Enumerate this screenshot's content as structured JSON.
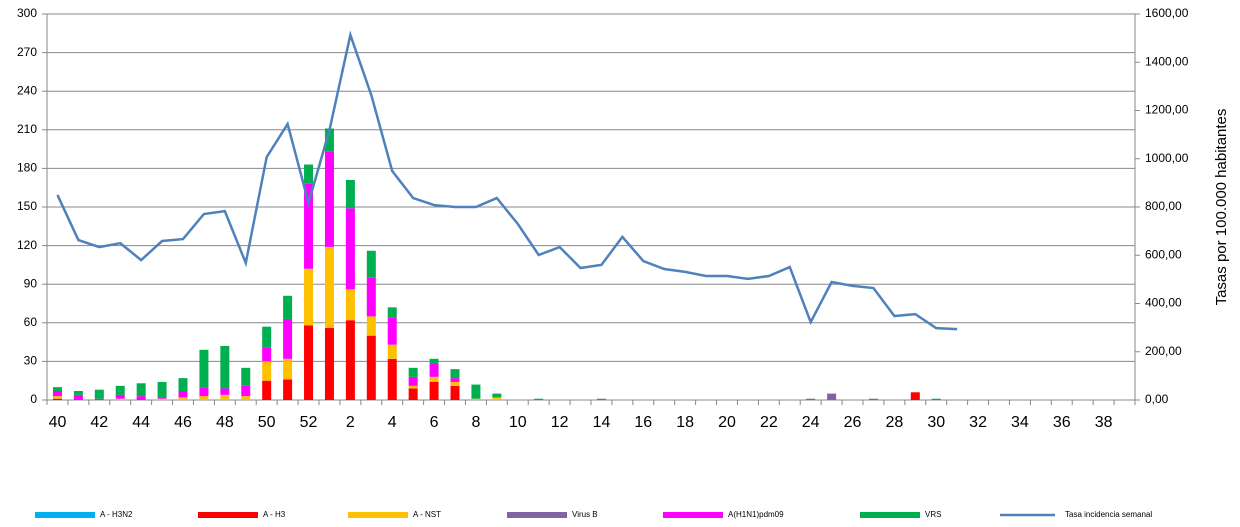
{
  "chart_data": {
    "type": "bar",
    "y2_label": "Tasas  por 100.000 habitantes",
    "categories": [
      "40",
      null,
      "42",
      null,
      "44",
      null,
      "46",
      null,
      "48",
      null,
      "50",
      null,
      "52",
      null,
      "2",
      null,
      "4",
      null,
      "6",
      null,
      "8",
      null,
      "10",
      null,
      "12",
      null,
      "14",
      null,
      "16",
      null,
      "18",
      null,
      "20",
      null,
      "22",
      null,
      "24",
      null,
      "26",
      null,
      "28",
      null,
      "30",
      null,
      "32",
      null,
      "34",
      null,
      "36",
      null,
      "38",
      null
    ],
    "ylim": [
      0,
      300
    ],
    "yticks": [
      0,
      30,
      60,
      90,
      120,
      150,
      180,
      210,
      240,
      270,
      300
    ],
    "y2lim": [
      0,
      1600
    ],
    "y2ticks": [
      {
        "value": 0,
        "label": "0,00"
      },
      {
        "value": 200,
        "label": "200,00"
      },
      {
        "value": 400,
        "label": "400,00"
      },
      {
        "value": 600,
        "label": "600,00"
      },
      {
        "value": 800,
        "label": "800,00"
      },
      {
        "value": 1000,
        "label": "1000,00"
      },
      {
        "value": 1200,
        "label": "1200,00"
      },
      {
        "value": 1400,
        "label": "1400,00"
      },
      {
        "value": 1600,
        "label": "1600,00"
      }
    ],
    "grid": true,
    "stacked": true,
    "legend": "bottom",
    "series": [
      {
        "name": "A - H3N2",
        "color": "#00b0f0",
        "values": [
          0,
          0,
          0,
          0,
          0,
          0,
          0,
          0,
          0,
          0,
          0,
          0,
          0,
          0,
          0,
          0,
          0,
          0,
          0,
          0,
          0,
          0,
          0,
          0,
          0,
          0,
          0,
          0,
          0,
          0,
          0,
          0,
          0,
          0,
          0,
          0,
          0,
          0,
          0,
          0,
          0,
          0,
          0,
          0,
          0,
          0,
          0,
          0,
          0,
          0,
          0,
          0
        ]
      },
      {
        "name": "A - H3",
        "color": "#ff0000",
        "values": [
          1,
          0,
          0,
          0,
          0,
          0,
          0,
          0,
          0,
          0,
          15,
          16,
          58,
          56,
          62,
          50,
          32,
          9,
          14,
          11,
          0,
          0,
          0,
          0,
          0,
          0,
          0,
          0,
          0,
          0,
          0,
          0,
          0,
          0,
          0,
          0,
          0,
          0,
          0,
          0,
          0,
          6,
          0,
          0,
          0,
          0,
          0,
          0,
          0,
          0,
          0,
          0
        ]
      },
      {
        "name": "A - NST",
        "color": "#ffc000",
        "values": [
          2,
          0,
          0,
          1,
          0,
          1,
          2,
          3,
          4,
          3,
          15,
          16,
          44,
          63,
          24,
          15,
          11,
          2,
          4,
          3,
          1,
          2,
          0,
          0,
          0,
          0,
          0,
          0,
          0,
          0,
          0,
          0,
          0,
          0,
          0,
          0,
          0,
          0,
          0,
          0,
          0,
          0,
          0,
          0,
          0,
          0,
          0,
          0,
          0,
          0,
          0,
          0
        ]
      },
      {
        "name": "Virus B",
        "color": "#8064a2",
        "values": [
          0,
          0,
          0,
          0,
          0,
          0,
          0,
          0,
          0,
          0,
          0,
          0,
          0,
          0,
          0,
          0,
          0,
          0,
          0,
          0,
          0,
          0,
          0,
          0,
          0,
          0,
          1,
          0,
          0,
          0,
          0,
          0,
          0,
          0,
          0,
          0,
          1,
          5,
          0,
          1,
          0,
          0,
          0,
          0,
          0,
          0,
          0,
          0,
          0,
          0,
          0,
          0
        ]
      },
      {
        "name": "A(H1N1)pdm09",
        "color": "#ff00ff",
        "values": [
          4,
          4,
          1,
          3,
          3,
          1,
          5,
          7,
          5,
          8,
          11,
          31,
          66,
          74,
          63,
          30,
          21,
          7,
          10,
          3,
          0,
          0,
          0,
          0,
          0,
          0,
          0,
          0,
          0,
          0,
          0,
          0,
          0,
          0,
          0,
          0,
          0,
          0,
          0,
          0,
          0,
          0,
          0,
          0,
          0,
          0,
          0,
          0,
          0,
          0,
          0,
          0
        ]
      },
      {
        "name": "VRS",
        "color": "#00b050",
        "values": [
          3,
          3,
          7,
          7,
          10,
          12,
          10,
          29,
          33,
          14,
          16,
          18,
          15,
          18,
          22,
          21,
          8,
          7,
          4,
          7,
          11,
          3,
          0,
          1,
          0,
          0,
          0,
          0,
          0,
          0,
          0,
          0,
          0,
          0,
          0,
          0,
          0,
          0,
          0,
          0,
          0,
          0,
          1,
          0,
          0,
          0,
          0,
          0,
          0,
          0,
          0,
          0
        ]
      },
      {
        "name": "Tasa incidencia semanal",
        "color": "#4f81bd",
        "axis": "y2",
        "type": "line",
        "values": [
          850,
          663,
          634,
          650,
          580,
          659,
          667,
          771,
          783,
          568,
          1007,
          1144,
          817,
          1119,
          1513,
          1264,
          949,
          837,
          808,
          800,
          800,
          837,
          730,
          601,
          634,
          547,
          560,
          676,
          576,
          543,
          531,
          514,
          514,
          502,
          514,
          551,
          323,
          489,
          473,
          464,
          348,
          356,
          298,
          294,
          null,
          null,
          null,
          null,
          null,
          null,
          null,
          null
        ]
      }
    ]
  }
}
